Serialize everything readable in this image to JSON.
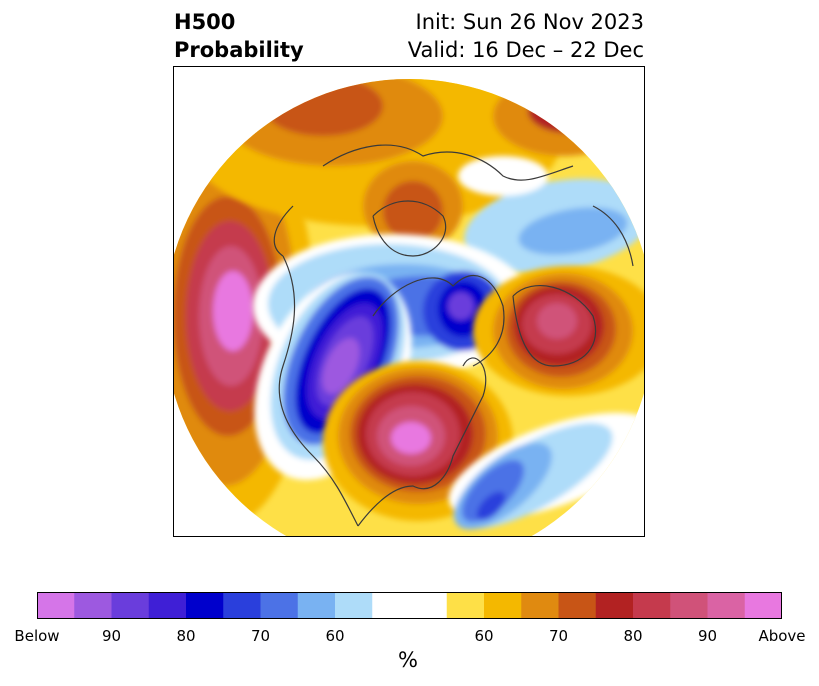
{
  "title": {
    "left_line1": "H500",
    "left_line2": "Probability",
    "right_line1": "Init: Sun 26 Nov 2023",
    "right_line2": "Valid: 16 Dec – 22 Dec"
  },
  "colorbar": {
    "unit": "%",
    "colors": [
      "#d575e8",
      "#9d59e0",
      "#6a3ddc",
      "#3f1fd6",
      "#0000cc",
      "#2a3fdc",
      "#4c72e6",
      "#79b2f2",
      "#aedcf9",
      "#ffffff",
      "#ffffff",
      "#fee047",
      "#f4b800",
      "#e08a10",
      "#c85516",
      "#b22222",
      "#c53a4d",
      "#d05279",
      "#da63a4",
      "#e878e0"
    ],
    "ticks": [
      {
        "label": "Below",
        "index": 0
      },
      {
        "label": "90",
        "index": 2
      },
      {
        "label": "80",
        "index": 4
      },
      {
        "label": "70",
        "index": 6
      },
      {
        "label": "60",
        "index": 8
      },
      {
        "label": "60",
        "index": 12
      },
      {
        "label": "70",
        "index": 14
      },
      {
        "label": "80",
        "index": 16
      },
      {
        "label": "90",
        "index": 18
      },
      {
        "label": "Above",
        "index": 20
      }
    ]
  },
  "map": {
    "projection": "north-polar-stereographic",
    "field": "500 hPa height probability (below / above normal)",
    "anomalies": [
      {
        "region": "North Pacific",
        "sign": "above",
        "max_level": "Above"
      },
      {
        "region": "Western North America / Alaska",
        "sign": "below",
        "max_level": "Below"
      },
      {
        "region": "Central / Eastern North America",
        "sign": "above",
        "max_level": "Above"
      },
      {
        "region": "Greenland / Labrador Sea",
        "sign": "below",
        "max_level": "90"
      },
      {
        "region": "Europe / North Atlantic",
        "sign": "above",
        "max_level": "Above"
      },
      {
        "region": "Eastern Siberia",
        "sign": "above",
        "max_level": "70"
      },
      {
        "region": "Arctic / Barents Sea",
        "sign": "below",
        "max_level": "70"
      },
      {
        "region": "Subtropical Atlantic",
        "sign": "below",
        "max_level": "80"
      }
    ]
  }
}
